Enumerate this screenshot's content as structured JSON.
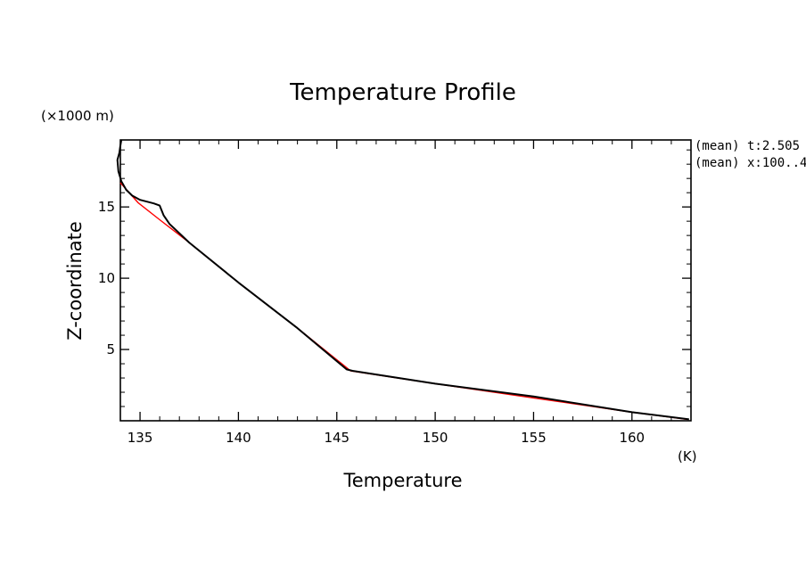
{
  "chart_data": {
    "type": "line",
    "title": "Temperature Profile",
    "xlabel": "Temperature",
    "ylabel": "Z-coordinate",
    "x_unit": "(K)",
    "y_unit": "(×1000 m)",
    "annotations": [
      "(mean) t:2.505",
      "(mean) x:100..4"
    ],
    "xlim": [
      134,
      163
    ],
    "ylim": [
      0,
      19.7
    ],
    "x_ticks": [
      135,
      140,
      145,
      150,
      155,
      160
    ],
    "x_tick_labels": [
      "135",
      "140",
      "145",
      "150",
      "155",
      "160"
    ],
    "y_ticks": [
      5,
      10,
      15
    ],
    "y_tick_labels": [
      "5",
      "10",
      "15"
    ],
    "grid": false,
    "series": [
      {
        "color": "#ff0000",
        "x": [
          162.8,
          160.0,
          155.0,
          150.0,
          145.7,
          143.0,
          140.0,
          137.5,
          136.0,
          134.9,
          134.0
        ],
        "y": [
          0.1,
          0.6,
          1.6,
          2.6,
          3.5,
          6.5,
          9.7,
          12.5,
          14.1,
          15.3,
          16.7
        ]
      },
      {
        "color": "#000000",
        "x": [
          162.9,
          160.0,
          155.0,
          150.0,
          145.8,
          145.5,
          143.0,
          140.0,
          137.5,
          136.5,
          136.2,
          136.0,
          135.7,
          135.0,
          134.6,
          134.3,
          134.05,
          133.9,
          133.85,
          133.95,
          134.0,
          134.05
        ],
        "y": [
          0.1,
          0.6,
          1.7,
          2.6,
          3.5,
          3.6,
          6.5,
          9.7,
          12.5,
          13.8,
          14.4,
          15.1,
          15.25,
          15.5,
          15.8,
          16.2,
          16.8,
          17.5,
          18.3,
          18.8,
          19.3,
          19.7
        ]
      }
    ]
  }
}
